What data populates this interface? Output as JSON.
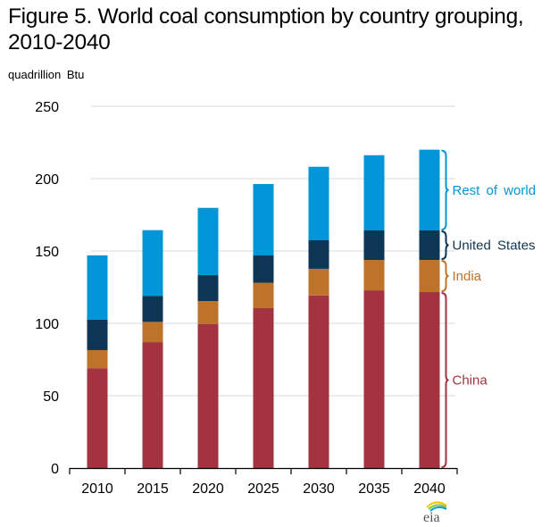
{
  "header": {
    "title_line1": "Figure 5. World coal consumption by country grouping,",
    "title_line2": "2010-2040",
    "unit_label": "quadrillion  Btu"
  },
  "logo": {
    "text": "eia",
    "icon": "eia-logo-icon"
  },
  "chart_data": {
    "type": "bar",
    "stacked": true,
    "title": "Figure 5. World coal consumption by country grouping, 2010-2040",
    "xlabel": "",
    "ylabel": "quadrillion Btu",
    "ylim": [
      0,
      250
    ],
    "yticks": [
      0,
      50,
      100,
      150,
      200,
      250
    ],
    "grid": true,
    "legend_placement": "right (bracketed labels beside last bar)",
    "categories": [
      "2010",
      "2015",
      "2020",
      "2025",
      "2030",
      "2035",
      "2040"
    ],
    "series": [
      {
        "name": "China",
        "color": "#a33340",
        "values": [
          69,
          87,
          99.6,
          110.5,
          119.3,
          122.8,
          121.6
        ]
      },
      {
        "name": "India",
        "color": "#bd732a",
        "values": [
          12.5,
          14,
          15.8,
          17.5,
          18.4,
          21,
          22.2
        ]
      },
      {
        "name": "United States",
        "color": "#0c3653",
        "values": [
          21,
          18,
          17.9,
          18.9,
          19.7,
          20.4,
          20.4
        ]
      },
      {
        "name": "Rest of world",
        "color": "#0096d7",
        "values": [
          44.5,
          45.4,
          46.5,
          49.4,
          50.8,
          52,
          55.8
        ]
      }
    ]
  }
}
